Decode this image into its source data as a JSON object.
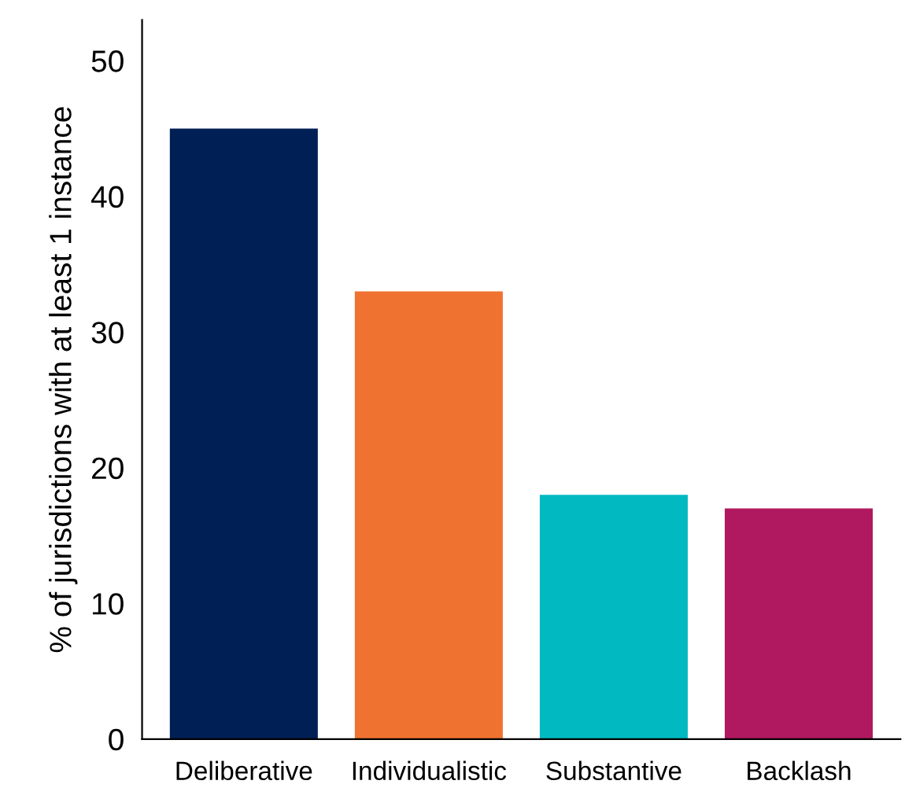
{
  "chart_data": {
    "type": "bar",
    "ylabel": "% of jurisdictions with at least 1 instance",
    "categories": [
      "Deliberative",
      "Individualistic",
      "Substantive",
      "Backlash"
    ],
    "values": [
      45,
      33,
      18,
      17
    ],
    "colors": [
      "#001f54",
      "#f07230",
      "#00b9c1",
      "#b0195f"
    ],
    "ylim": [
      0,
      53
    ],
    "yticks": [
      0,
      10,
      20,
      30,
      40,
      50
    ],
    "grid": false,
    "legend": false
  }
}
